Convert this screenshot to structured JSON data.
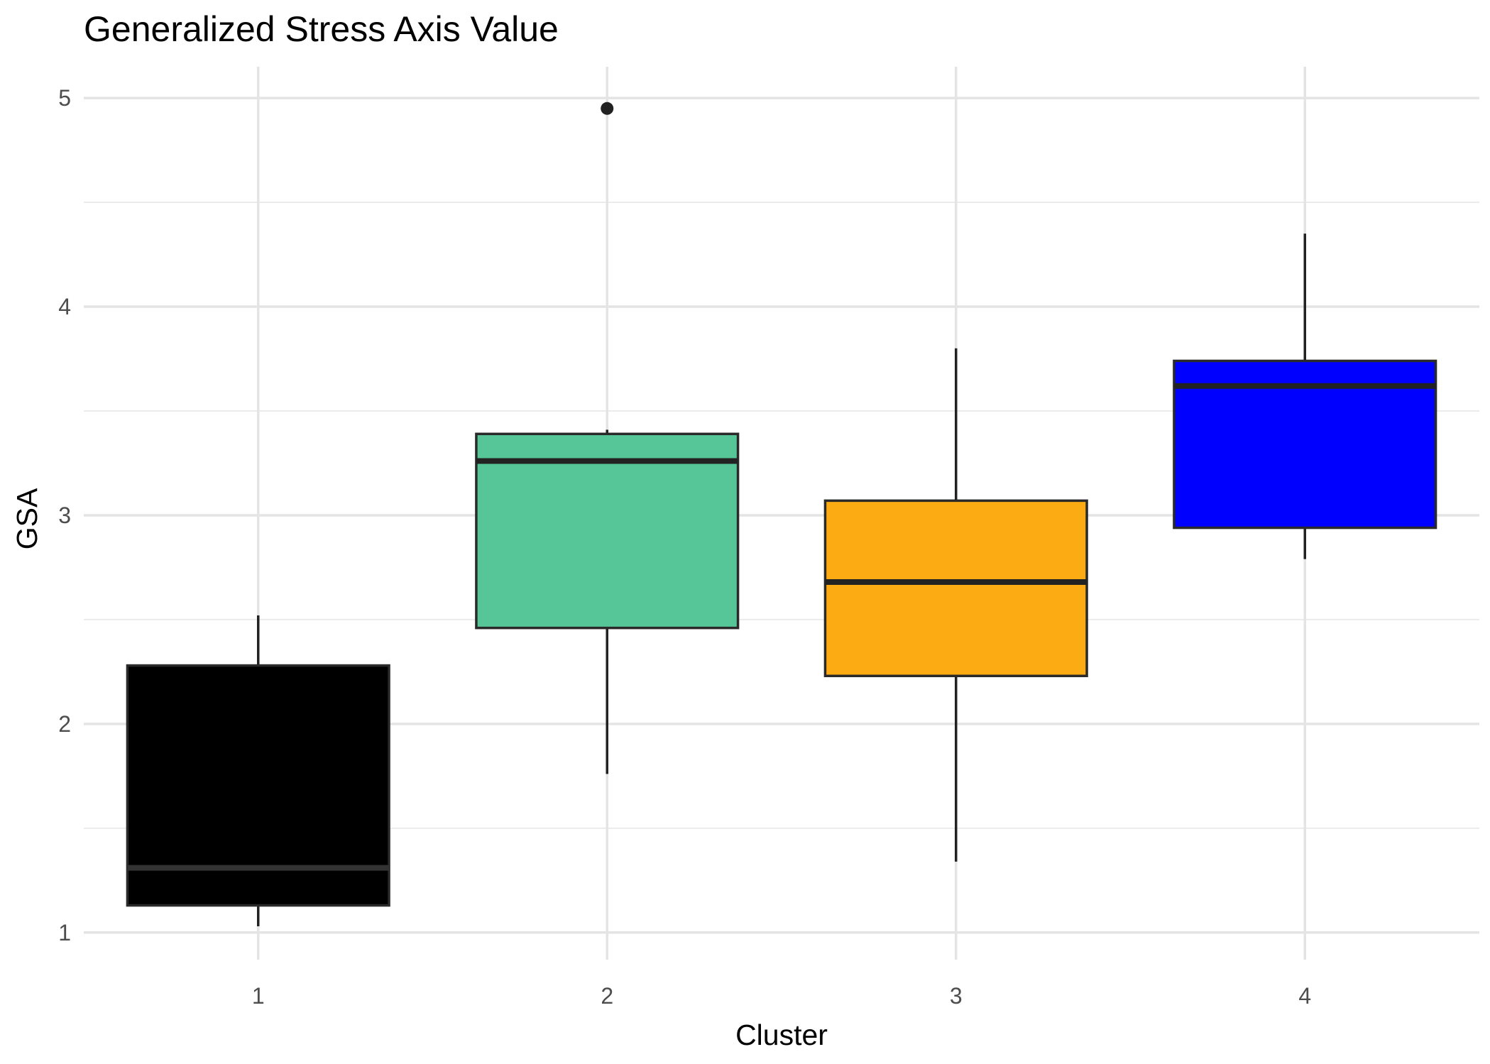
{
  "chart_data": {
    "type": "boxplot",
    "title": "Generalized Stress Axis Value",
    "xlabel": "Cluster",
    "ylabel": "GSA",
    "categories": [
      "1",
      "2",
      "3",
      "4"
    ],
    "y_ticks": [
      "1",
      "2",
      "3",
      "4",
      "5"
    ],
    "ylim": [
      0.87,
      5.15
    ],
    "grid": true,
    "legend": "none",
    "boxes": [
      {
        "category": "1",
        "lower_whisker": 1.03,
        "q1": 1.13,
        "median": 1.31,
        "q3": 2.28,
        "upper_whisker": 2.52,
        "outliers": [],
        "fill": "#000000",
        "median_color": "#333333"
      },
      {
        "category": "2",
        "lower_whisker": 1.76,
        "q1": 2.46,
        "median": 3.26,
        "q3": 3.39,
        "upper_whisker": 3.41,
        "outliers": [
          4.95
        ],
        "fill": "#56c699",
        "median_color": "#222222"
      },
      {
        "category": "3",
        "lower_whisker": 1.34,
        "q1": 2.23,
        "median": 2.68,
        "q3": 3.07,
        "upper_whisker": 3.8,
        "outliers": [],
        "fill": "#fcac12",
        "median_color": "#222222"
      },
      {
        "category": "4",
        "lower_whisker": 2.79,
        "q1": 2.94,
        "median": 3.62,
        "q3": 3.74,
        "upper_whisker": 4.35,
        "outliers": [],
        "fill": "#0000ff",
        "median_color": "#222222"
      }
    ]
  }
}
